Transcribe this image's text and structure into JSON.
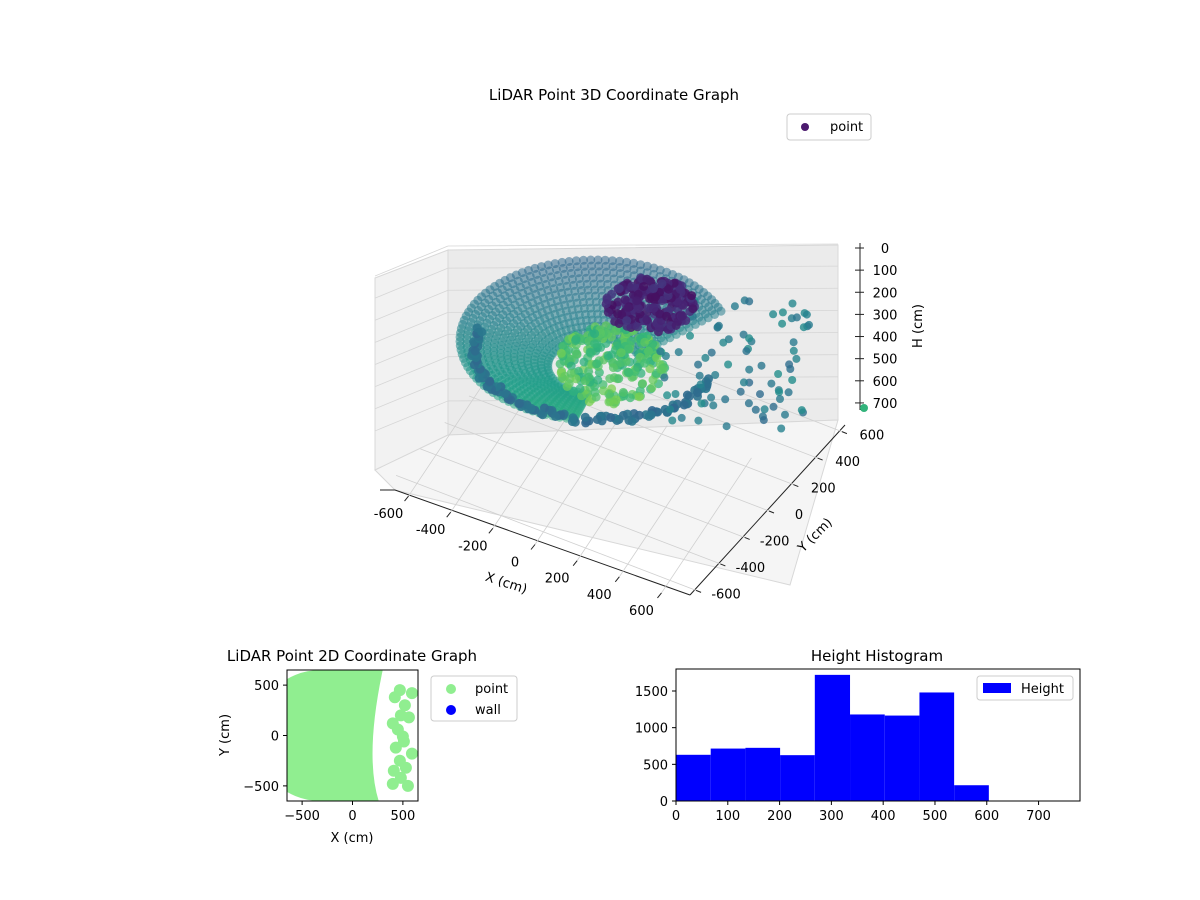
{
  "chart_data": [
    {
      "type": "scatter",
      "subtype": "3d",
      "title": "LiDAR Point 3D Coordinate Graph",
      "xlabel": "X (cm)",
      "ylabel": "Y (cm)",
      "zlabel": "H (cm)",
      "xlim": [
        -650,
        650
      ],
      "ylim": [
        -650,
        650
      ],
      "zlim": [
        0,
        750
      ],
      "z_inverted": true,
      "x_ticks": [
        -600,
        -400,
        -200,
        0,
        200,
        400,
        600
      ],
      "y_ticks": [
        -600,
        -400,
        -200,
        0,
        200,
        400,
        600
      ],
      "z_ticks": [
        0,
        100,
        200,
        300,
        400,
        500,
        600,
        700
      ],
      "colormap": "viridis",
      "legend": {
        "position": "top-right",
        "entries": [
          {
            "label": "point",
            "color": "#4b1a6e"
          }
        ]
      },
      "grid": true
    },
    {
      "type": "scatter",
      "title": "LiDAR Point 2D Coordinate Graph",
      "xlabel": "X (cm)",
      "ylabel": "Y (cm)",
      "xlim": [
        -650,
        650
      ],
      "ylim": [
        -650,
        650
      ],
      "x_ticks": [
        -500,
        0,
        500
      ],
      "y_ticks": [
        -500,
        0,
        500
      ],
      "series": [
        {
          "name": "point",
          "color": "#90ee90"
        },
        {
          "name": "wall",
          "color": "#0000ff"
        }
      ],
      "legend": {
        "position": "outside-right"
      }
    },
    {
      "type": "bar",
      "subtype": "histogram",
      "title": "Height Histogram",
      "bin_edges": [
        0,
        67,
        134,
        201,
        268,
        336,
        403,
        470,
        537,
        604
      ],
      "values": [
        630,
        715,
        725,
        625,
        1720,
        1180,
        1165,
        1480,
        215
      ],
      "xlim": [
        0,
        780
      ],
      "ylim": [
        0,
        1800
      ],
      "x_ticks": [
        0,
        100,
        200,
        300,
        400,
        500,
        600,
        700
      ],
      "y_ticks": [
        0,
        500,
        1000,
        1500
      ],
      "series": [
        {
          "name": "Height",
          "color": "#0000ff"
        }
      ],
      "legend": {
        "position": "top-right"
      }
    }
  ]
}
